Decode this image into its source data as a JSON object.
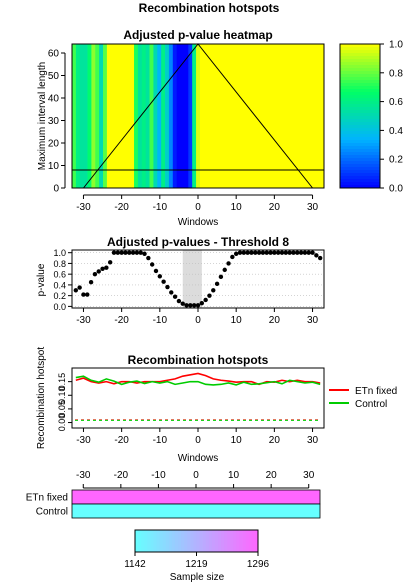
{
  "figure_title": "Recombination hotspots",
  "chart_data": [
    {
      "id": "heatmap",
      "type": "heatmap",
      "title": "Adjusted p-value heatmap",
      "xlabel": "Windows",
      "ylabel": "Maximum interval length",
      "xlim": [
        -33,
        33
      ],
      "ylim": [
        0,
        64
      ],
      "x_ticks": [
        -30,
        -20,
        -10,
        0,
        10,
        20,
        30
      ],
      "y_ticks": [
        0,
        10,
        20,
        30,
        40,
        50,
        60
      ],
      "threshold_line": 8,
      "legend_ticks": [
        0.0,
        0.2,
        0.4,
        0.6,
        0.8,
        1.0
      ],
      "legend_tick_labels": [
        "0.0",
        "0.2",
        "0.4",
        "0.6",
        "0.8",
        "1.0"
      ],
      "colors": [
        "#0000ff",
        "#00b3ff",
        "#00ff66",
        "#ffff00"
      ],
      "column_windows": [
        -32,
        -31,
        -30,
        -29,
        -28,
        -27,
        -26,
        -25,
        -24,
        -23,
        -22,
        -21,
        -20,
        -19,
        -18,
        -17,
        -16,
        -15,
        -14,
        -13,
        -12,
        -11,
        -10,
        -9,
        -8,
        -7,
        -6,
        -5,
        -4,
        -3,
        -2,
        -1,
        0,
        1,
        2,
        3,
        4,
        5,
        6,
        7,
        8,
        9,
        10,
        11,
        12,
        13,
        14,
        15,
        16,
        17,
        18,
        19,
        20,
        21,
        22,
        23,
        24,
        25,
        26,
        27,
        28,
        29,
        30,
        31,
        32
      ],
      "column_values": [
        0.75,
        0.6,
        0.55,
        0.55,
        0.65,
        0.85,
        0.75,
        0.5,
        0.78,
        1,
        1,
        1,
        1,
        1,
        1,
        1,
        0.7,
        0.55,
        0.6,
        0.55,
        0.75,
        0.5,
        0.35,
        0.6,
        0.45,
        0.25,
        0.05,
        0,
        0,
        0,
        0.1,
        0.6,
        0.95,
        1,
        1,
        1,
        1,
        1,
        1,
        1,
        1,
        1,
        1,
        1,
        1,
        1,
        1,
        1,
        1,
        1,
        1,
        1,
        1,
        1,
        1,
        1,
        1,
        1,
        1,
        1,
        1,
        1,
        1,
        1,
        1
      ]
    },
    {
      "id": "adjusted",
      "type": "scatter",
      "title": "Adjusted p-values - Threshold 8",
      "xlabel": "",
      "ylabel": "p-value",
      "xlim": [
        -33,
        33
      ],
      "ylim": [
        0,
        1
      ],
      "x_ticks": [
        -30,
        -20,
        -10,
        0,
        10,
        20,
        30
      ],
      "y_ticks": [
        0,
        0.2,
        0.4,
        0.6,
        0.8,
        1.0
      ],
      "y_tick_labels": [
        "0.0",
        "0.2",
        "0.4",
        "0.6",
        "0.8",
        "1.0"
      ],
      "shaded_region": [
        -4,
        1
      ],
      "x": [
        -32,
        -31,
        -30,
        -29,
        -28,
        -27,
        -26,
        -25,
        -24,
        -23,
        -22,
        -21,
        -20,
        -19,
        -18,
        -17,
        -16,
        -15,
        -14,
        -13,
        -12,
        -11,
        -10,
        -9,
        -8,
        -7,
        -6,
        -5,
        -4,
        -3,
        -2,
        -1,
        0,
        1,
        2,
        3,
        4,
        5,
        6,
        7,
        8,
        9,
        10,
        11,
        12,
        13,
        14,
        15,
        16,
        17,
        18,
        19,
        20,
        21,
        22,
        23,
        24,
        25,
        26,
        27,
        28,
        29,
        30,
        31,
        32
      ],
      "y": [
        0.3,
        0.35,
        0.22,
        0.22,
        0.45,
        0.6,
        0.65,
        0.7,
        0.72,
        0.82,
        1,
        1,
        1,
        1,
        1,
        1,
        1,
        1,
        0.98,
        0.9,
        0.78,
        0.66,
        0.56,
        0.46,
        0.36,
        0.26,
        0.18,
        0.1,
        0.05,
        0.02,
        0.02,
        0.02,
        0.02,
        0.06,
        0.12,
        0.2,
        0.3,
        0.42,
        0.55,
        0.68,
        0.8,
        0.92,
        0.98,
        1,
        1,
        1,
        1,
        1,
        1,
        1,
        1,
        1,
        1,
        1,
        1,
        1,
        1,
        1,
        1,
        1,
        1,
        1,
        1,
        0.95,
        0.9
      ]
    },
    {
      "id": "hotspots",
      "type": "line",
      "title": "Recombination hotspots",
      "xlabel": "Windows",
      "ylabel": "Recombination hotspot",
      "xlim": [
        -33,
        33
      ],
      "ylim": [
        -0.02,
        0.2
      ],
      "x_ticks": [
        -30,
        -20,
        -10,
        0,
        10,
        20,
        30
      ],
      "y_ticks": [
        0,
        0.05,
        0.1,
        0.15
      ],
      "y_tick_labels": [
        "0.00",
        "0.05",
        "0.10",
        "0.15"
      ],
      "x": [
        -32,
        -30,
        -28,
        -26,
        -24,
        -22,
        -20,
        -18,
        -16,
        -14,
        -12,
        -10,
        -8,
        -6,
        -4,
        -2,
        0,
        2,
        4,
        6,
        8,
        10,
        12,
        14,
        16,
        18,
        20,
        22,
        24,
        26,
        28,
        30,
        32
      ],
      "series": [
        {
          "name": "ETn fixed",
          "color": "#ff0000",
          "values": [
            0.155,
            0.163,
            0.15,
            0.145,
            0.15,
            0.142,
            0.15,
            0.15,
            0.145,
            0.15,
            0.15,
            0.15,
            0.155,
            0.16,
            0.17,
            0.175,
            0.18,
            0.172,
            0.16,
            0.155,
            0.152,
            0.148,
            0.15,
            0.15,
            0.14,
            0.15,
            0.148,
            0.155,
            0.15,
            0.155,
            0.15,
            0.15,
            0.145
          ]
        },
        {
          "name": "Control",
          "color": "#00cc00",
          "values": [
            0.165,
            0.17,
            0.155,
            0.148,
            0.16,
            0.152,
            0.14,
            0.148,
            0.152,
            0.143,
            0.15,
            0.145,
            0.15,
            0.14,
            0.145,
            0.15,
            0.15,
            0.14,
            0.138,
            0.14,
            0.145,
            0.138,
            0.148,
            0.14,
            0.142,
            0.146,
            0.15,
            0.142,
            0.155,
            0.15,
            0.145,
            0.148,
            0.14
          ]
        }
      ],
      "baseline_values": [
        0.01,
        0.008
      ]
    },
    {
      "id": "sample",
      "type": "heatmap",
      "xlim": [
        -33,
        33
      ],
      "x_ticks": [
        -30,
        -20,
        -10,
        0,
        10,
        20,
        30
      ],
      "rows": [
        {
          "name": "ETn fixed",
          "sample_size": 1296,
          "color": "#ff66ff"
        },
        {
          "name": "Control",
          "sample_size": 1142,
          "color": "#66ffff"
        }
      ],
      "xlabel": "Sample size",
      "legend_ticks": [
        1142,
        1219,
        1296
      ],
      "colors": [
        "#66ffff",
        "#ff66ff"
      ]
    }
  ]
}
